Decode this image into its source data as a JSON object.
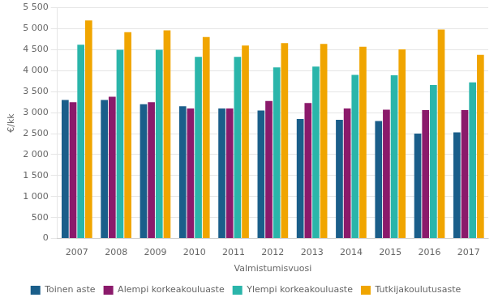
{
  "chart_data": {
    "type": "bar",
    "xlabel": "Valmistumisvuosi",
    "ylabel": "€/kk",
    "categories": [
      "2007",
      "2008",
      "2009",
      "2010",
      "2011",
      "2012",
      "2013",
      "2014",
      "2015",
      "2016",
      "2017"
    ],
    "series": [
      {
        "name": "Toinen aste",
        "color": "#1a5e8a",
        "values": [
          3300,
          3300,
          3200,
          3150,
          3100,
          3050,
          2850,
          2830,
          2800,
          2500,
          2530
        ]
      },
      {
        "name": "Alempi korkeakouluaste",
        "color": "#8b1a6b",
        "values": [
          3250,
          3380,
          3250,
          3100,
          3100,
          3280,
          3230,
          3100,
          3070,
          3060,
          3060
        ]
      },
      {
        "name": "Ylempi korkeakouluaste",
        "color": "#2ab5aa",
        "values": [
          4620,
          4500,
          4500,
          4330,
          4330,
          4080,
          4100,
          3900,
          3890,
          3660,
          3720
        ]
      },
      {
        "name": "Tutkijakoulutusaste",
        "color": "#f0a500",
        "values": [
          5200,
          4920,
          4960,
          4800,
          4600,
          4660,
          4640,
          4570,
          4510,
          4980,
          4380
        ]
      }
    ],
    "ylim": [
      0,
      5500
    ],
    "yticks": [
      0,
      500,
      {
        "value": 1000,
        "label": "1 000"
      },
      {
        "value": 1500,
        "label": "1 500"
      },
      {
        "value": 2000,
        "label": "2 000"
      },
      {
        "value": 2500,
        "label": "2 500"
      },
      {
        "value": 3000,
        "label": "3 000"
      },
      {
        "value": 3500,
        "label": "3 500"
      },
      {
        "value": 4000,
        "label": "4 000"
      },
      {
        "value": 4500,
        "label": "4 500"
      },
      {
        "value": 5000,
        "label": "5 000"
      },
      {
        "value": 5500,
        "label": "5 500"
      }
    ],
    "grid": true,
    "legend": "bottom"
  }
}
